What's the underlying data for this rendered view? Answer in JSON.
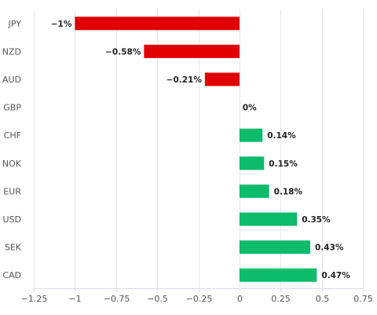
{
  "chart_data": {
    "type": "bar",
    "orientation": "horizontal",
    "categories": [
      "JPY",
      "NZD",
      "AUD",
      "GBP",
      "CHF",
      "NOK",
      "EUR",
      "USD",
      "SEK",
      "CAD"
    ],
    "values": [
      -1,
      -0.58,
      -0.21,
      0,
      0.14,
      0.15,
      0.18,
      0.35,
      0.43,
      0.47
    ],
    "data_labels": [
      "−1%",
      "−0.58%",
      "−0.21%",
      "0%",
      "0.14%",
      "0.15%",
      "0.18%",
      "0.35%",
      "0.43%",
      "0.47%"
    ],
    "xlim": [
      -1.25,
      0.75
    ],
    "x_ticks": [
      -1.25,
      -1,
      -0.75,
      -0.5,
      -0.25,
      0,
      0.25,
      0.5,
      0.75
    ],
    "x_tick_labels": [
      "−1.25",
      "−1",
      "−0.75",
      "−0.5",
      "−0.25",
      "0",
      "0.25",
      "0.5",
      "0.75"
    ],
    "grid": "vertical",
    "title": "",
    "xlabel": "",
    "ylabel": "",
    "colors": {
      "negative": "#e10000",
      "positive": "#0cbc6b"
    }
  }
}
